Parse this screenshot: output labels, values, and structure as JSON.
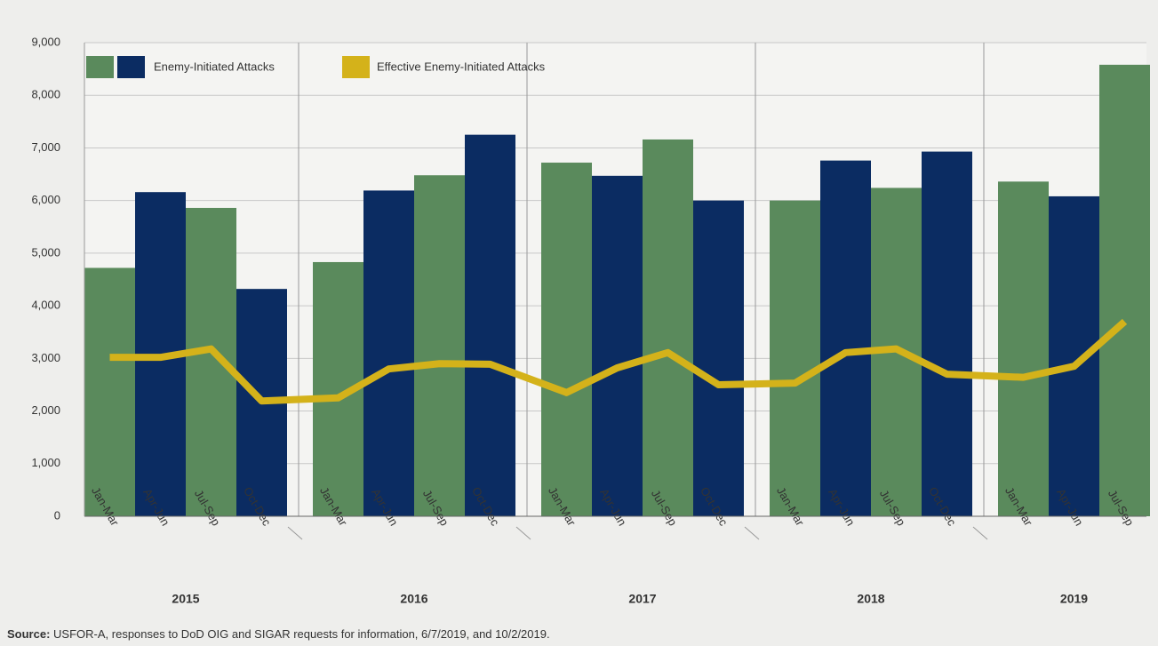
{
  "chart_data": {
    "type": "bar_line",
    "groups": [
      {
        "name": "2015",
        "categories": [
          "Jan-Mar",
          "Apr-Jun",
          "Jul-Sep",
          "Oct-Dec"
        ]
      },
      {
        "name": "2016",
        "categories": [
          "Jan-Mar",
          "Apr-Jun",
          "Jul-Sep",
          "Oct-Dec"
        ]
      },
      {
        "name": "2017",
        "categories": [
          "Jan-Mar",
          "Apr-Jun",
          "Jul-Sep",
          "Oct-Dec"
        ]
      },
      {
        "name": "2018",
        "categories": [
          "Jan-Mar",
          "Apr-Jun",
          "Jul-Sep",
          "Oct-Dec"
        ]
      },
      {
        "name": "2019",
        "categories": [
          "Jan-Mar",
          "Apr-Jun",
          "Jul-Sep"
        ]
      }
    ],
    "series": [
      {
        "name": "Enemy-Initiated Attacks",
        "type": "bar",
        "colors": [
          "#5a8a5c",
          "#0b2c62"
        ],
        "values": [
          4720,
          6160,
          5860,
          4320,
          4830,
          6190,
          6480,
          7250,
          6720,
          6470,
          7160,
          6000,
          6000,
          6760,
          6240,
          6930,
          6360,
          6080,
          8580
        ]
      },
      {
        "name": "Effective Enemy-Initiated Attacks",
        "type": "line",
        "color": "#d4b21a",
        "values": [
          3020,
          3020,
          3180,
          2190,
          2250,
          2800,
          2900,
          2890,
          2350,
          2820,
          3110,
          2500,
          2530,
          3110,
          3180,
          2700,
          2640,
          2850,
          3700
        ]
      }
    ],
    "ylim": [
      0,
      9000
    ],
    "yticks": [
      0,
      {
        "value": 1000,
        "label": "1,000"
      },
      {
        "value": 2000,
        "label": "2,000"
      },
      {
        "value": 3000,
        "label": "3,000"
      },
      {
        "value": 4000,
        "label": "4,000"
      },
      {
        "value": 5000,
        "label": "5,000"
      },
      {
        "value": 6000,
        "label": "6,000"
      },
      {
        "value": 7000,
        "label": "7,000"
      },
      {
        "value": 8000,
        "label": "8,000"
      },
      {
        "value": 9000,
        "label": "9,000"
      }
    ],
    "grid": true,
    "source_label": "Source:",
    "source": "USFOR-A, responses to DoD OIG and SIGAR requests for information, 6/7/2019, and 10/2/2019."
  }
}
